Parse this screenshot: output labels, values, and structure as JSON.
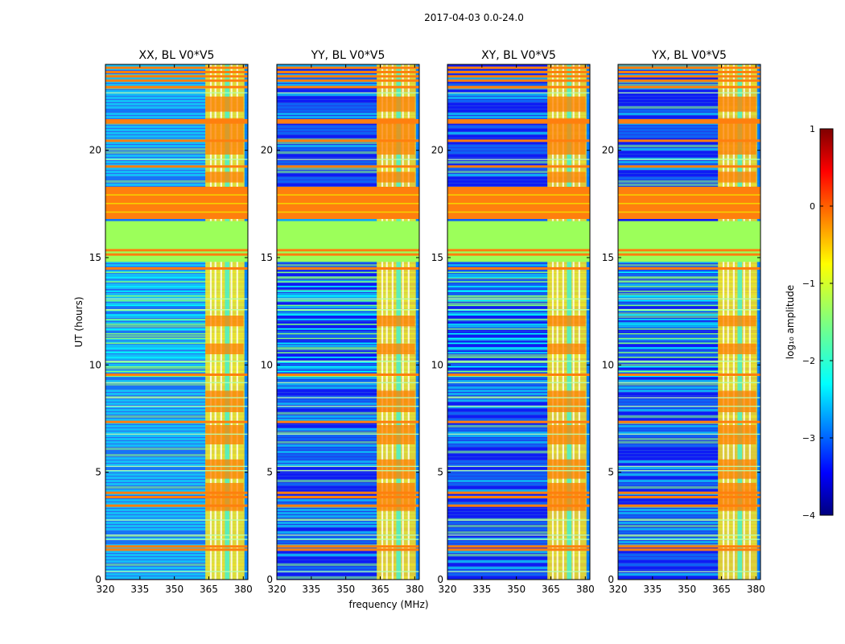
{
  "figure": {
    "suptitle": "2017-04-03 0.0-24.0"
  },
  "chart_data": {
    "type": "heatmap",
    "xlabel": "frequency (MHz)",
    "ylabel": "UT (hours)",
    "xlim": [
      320,
      382
    ],
    "ylim": [
      0,
      24
    ],
    "xticks": [
      320,
      335,
      350,
      365,
      380
    ],
    "yticks": [
      0,
      5,
      10,
      15,
      20
    ],
    "panels": [
      {
        "title": "XX, BL V0*V5"
      },
      {
        "title": "YY, BL V0*V5"
      },
      {
        "title": "XY, BL V0*V5"
      },
      {
        "title": "YX, BL V0*V5"
      }
    ],
    "colorbar": {
      "label": "log₁₀ amplitude",
      "range": [
        -4,
        1
      ],
      "ticks": [
        "1",
        "0",
        "−1",
        "−2",
        "−3",
        "−4"
      ],
      "colormap": "jet"
    },
    "colormap_colors": [
      "#00007f",
      "#0000ff",
      "#007fff",
      "#00ffff",
      "#7fff7f",
      "#ffff00",
      "#ff7f00",
      "#ff0000",
      "#7f0000"
    ]
  }
}
